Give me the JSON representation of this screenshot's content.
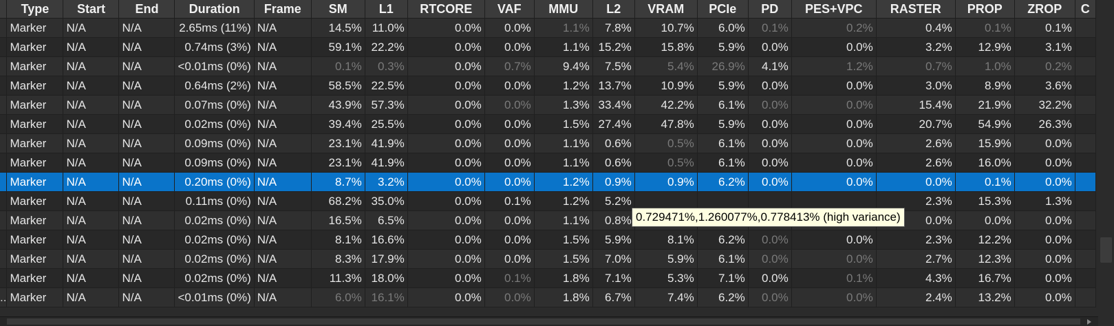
{
  "columns": [
    "",
    "Type",
    "Start",
    "End",
    "Duration",
    "Frame",
    "SM",
    "L1",
    "RTCORE",
    "VAF",
    "MMU",
    "L2",
    "VRAM",
    "PCIe",
    "PD",
    "PES+VPC",
    "RASTER",
    "PROP",
    "ZROP",
    "C"
  ],
  "rows": [
    {
      "cells": [
        "",
        "Marker",
        "N/A",
        "N/A",
        "2.65ms (11%)",
        "N/A",
        "14.5%",
        "11.0%",
        "0.0%",
        "0.0%",
        "1.1%",
        "7.8%",
        "10.7%",
        "6.0%",
        "0.1%",
        "0.2%",
        "0.4%",
        "0.1%",
        "0.1%",
        ""
      ],
      "dim": [
        10,
        14,
        15,
        17
      ]
    },
    {
      "cells": [
        "",
        "Marker",
        "N/A",
        "N/A",
        "0.74ms (3%)",
        "N/A",
        "59.1%",
        "22.2%",
        "0.0%",
        "0.0%",
        "1.1%",
        "15.2%",
        "15.8%",
        "5.9%",
        "0.0%",
        "0.0%",
        "3.2%",
        "12.9%",
        "3.1%",
        ""
      ],
      "dim": []
    },
    {
      "cells": [
        "",
        "Marker",
        "N/A",
        "N/A",
        "<0.01ms (0%)",
        "N/A",
        "0.1%",
        "0.3%",
        "0.0%",
        "0.7%",
        "9.4%",
        "7.5%",
        "5.4%",
        "26.9%",
        "4.1%",
        "1.2%",
        "0.7%",
        "1.0%",
        "0.2%",
        ""
      ],
      "dim": [
        6,
        7,
        9,
        12,
        13,
        15,
        16,
        17,
        18
      ]
    },
    {
      "cells": [
        "",
        "Marker",
        "N/A",
        "N/A",
        "0.64ms (2%)",
        "N/A",
        "58.5%",
        "22.5%",
        "0.0%",
        "0.0%",
        "1.2%",
        "13.7%",
        "10.9%",
        "5.9%",
        "0.0%",
        "0.0%",
        "3.0%",
        "8.9%",
        "3.6%",
        ""
      ],
      "dim": []
    },
    {
      "cells": [
        "",
        "Marker",
        "N/A",
        "N/A",
        "0.07ms (0%)",
        "N/A",
        "43.9%",
        "57.3%",
        "0.0%",
        "0.0%",
        "1.3%",
        "33.4%",
        "42.2%",
        "6.1%",
        "0.0%",
        "0.0%",
        "15.4%",
        "21.9%",
        "32.2%",
        ""
      ],
      "dim": [
        9,
        14,
        15
      ]
    },
    {
      "cells": [
        "",
        "Marker",
        "N/A",
        "N/A",
        "0.02ms (0%)",
        "N/A",
        "39.4%",
        "25.5%",
        "0.0%",
        "0.0%",
        "1.5%",
        "27.4%",
        "47.8%",
        "5.9%",
        "0.0%",
        "0.0%",
        "20.7%",
        "54.9%",
        "26.3%",
        ""
      ],
      "dim": []
    },
    {
      "cells": [
        "",
        "Marker",
        "N/A",
        "N/A",
        "0.09ms (0%)",
        "N/A",
        "23.1%",
        "41.9%",
        "0.0%",
        "0.0%",
        "1.1%",
        "0.6%",
        "0.5%",
        "6.1%",
        "0.0%",
        "0.0%",
        "2.6%",
        "15.9%",
        "0.0%",
        ""
      ],
      "dim": [
        12
      ]
    },
    {
      "cells": [
        "",
        "Marker",
        "N/A",
        "N/A",
        "0.09ms (0%)",
        "N/A",
        "23.1%",
        "41.9%",
        "0.0%",
        "0.0%",
        "1.1%",
        "0.6%",
        "0.5%",
        "6.1%",
        "0.0%",
        "0.0%",
        "2.6%",
        "16.0%",
        "0.0%",
        ""
      ],
      "dim": [
        12
      ]
    },
    {
      "cells": [
        "",
        "Marker",
        "N/A",
        "N/A",
        "0.20ms (0%)",
        "N/A",
        "8.7%",
        "3.2%",
        "0.0%",
        "0.0%",
        "1.2%",
        "0.9%",
        "0.9%",
        "6.2%",
        "0.0%",
        "0.0%",
        "0.0%",
        "0.1%",
        "0.0%",
        ""
      ],
      "dim": [],
      "selected": true
    },
    {
      "cells": [
        "",
        "Marker",
        "N/A",
        "N/A",
        "0.11ms (0%)",
        "N/A",
        "68.2%",
        "35.0%",
        "0.0%",
        "0.1%",
        "1.2%",
        "5.2%",
        "",
        "",
        "",
        "",
        "2.3%",
        "15.3%",
        "1.3%",
        ""
      ],
      "dim": []
    },
    {
      "cells": [
        "",
        "Marker",
        "N/A",
        "N/A",
        "0.02ms (0%)",
        "N/A",
        "16.5%",
        "6.5%",
        "0.0%",
        "0.0%",
        "1.1%",
        "0.8%",
        "",
        "",
        "",
        "",
        "0.0%",
        "0.0%",
        "0.0%",
        ""
      ],
      "dim": []
    },
    {
      "cells": [
        "",
        "Marker",
        "N/A",
        "N/A",
        "0.02ms (0%)",
        "N/A",
        "8.1%",
        "16.6%",
        "0.0%",
        "0.0%",
        "1.5%",
        "5.9%",
        "8.1%",
        "6.2%",
        "0.0%",
        "0.0%",
        "2.3%",
        "12.2%",
        "0.0%",
        ""
      ],
      "dim": [
        14
      ]
    },
    {
      "cells": [
        "",
        "Marker",
        "N/A",
        "N/A",
        "0.02ms (0%)",
        "N/A",
        "8.3%",
        "17.9%",
        "0.0%",
        "0.0%",
        "1.5%",
        "7.0%",
        "5.9%",
        "6.1%",
        "0.0%",
        "0.0%",
        "2.7%",
        "12.3%",
        "0.0%",
        ""
      ],
      "dim": [
        14,
        15
      ]
    },
    {
      "cells": [
        "",
        "Marker",
        "N/A",
        "N/A",
        "0.02ms (0%)",
        "N/A",
        "11.3%",
        "18.0%",
        "0.0%",
        "0.1%",
        "1.8%",
        "7.1%",
        "5.3%",
        "7.1%",
        "0.0%",
        "0.1%",
        "4.3%",
        "16.7%",
        "0.0%",
        ""
      ],
      "dim": [
        9,
        15
      ]
    },
    {
      "cells": [
        "..",
        "Marker",
        "N/A",
        "N/A",
        "<0.01ms (0%)",
        "N/A",
        "6.0%",
        "16.1%",
        "0.0%",
        "0.0%",
        "1.8%",
        "6.7%",
        "7.4%",
        "6.2%",
        "0.0%",
        "0.0%",
        "2.4%",
        "13.2%",
        "0.0%",
        ""
      ],
      "dim": [
        6,
        7,
        9,
        14,
        15
      ]
    }
  ],
  "tooltip": "0.729471%,1.260077%,0.778413% (high variance)"
}
